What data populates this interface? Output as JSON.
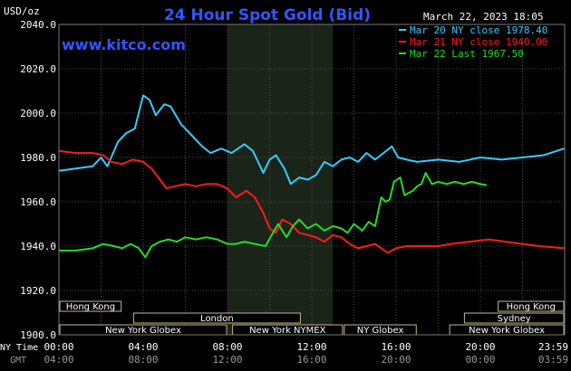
{
  "chart_data": {
    "type": "line",
    "title": "24 Hour Spot Gold (Bid)",
    "ylabel": "USD/oz",
    "timestamp": "March 22, 2023 18:05",
    "watermark": "www.kitco.com",
    "ylim": [
      1900,
      2040
    ],
    "y_ticks": [
      "2040.0",
      "2020.0",
      "2000.0",
      "1980.0",
      "1960.0",
      "1940.0",
      "1920.0",
      "1900.0"
    ],
    "x_axis_label_1": "NY Time",
    "x_axis_label_2": "GMT",
    "x_ticks_ny": [
      "00:00",
      "04:00",
      "08:00",
      "12:00",
      "16:00",
      "20:00",
      "23:59"
    ],
    "x_ticks_gmt": [
      "04:00",
      "08:00",
      "12:00",
      "16:00",
      "20:00",
      "00:00",
      "03:59"
    ],
    "highlight_region_hours": [
      8,
      13
    ],
    "series": [
      {
        "name": "Mar 20 NY close 1978.40",
        "color": "#33ccff",
        "points": [
          [
            0,
            1974
          ],
          [
            0.8,
            1975
          ],
          [
            1.6,
            1976
          ],
          [
            2.0,
            1980
          ],
          [
            2.3,
            1976
          ],
          [
            2.8,
            1987
          ],
          [
            3.2,
            1991
          ],
          [
            3.6,
            1993
          ],
          [
            4.0,
            2008
          ],
          [
            4.3,
            2006
          ],
          [
            4.6,
            1999
          ],
          [
            5.0,
            2004
          ],
          [
            5.3,
            2003
          ],
          [
            5.8,
            1995
          ],
          [
            6.3,
            1990
          ],
          [
            6.8,
            1985
          ],
          [
            7.2,
            1982
          ],
          [
            7.7,
            1984
          ],
          [
            8.2,
            1982
          ],
          [
            8.8,
            1986
          ],
          [
            9.2,
            1983
          ],
          [
            9.5,
            1977
          ],
          [
            9.7,
            1973
          ],
          [
            10.0,
            1979
          ],
          [
            10.3,
            1981
          ],
          [
            10.7,
            1975
          ],
          [
            11.0,
            1968
          ],
          [
            11.4,
            1971
          ],
          [
            11.8,
            1970
          ],
          [
            12.2,
            1972
          ],
          [
            12.6,
            1978
          ],
          [
            13.0,
            1976
          ],
          [
            13.4,
            1979
          ],
          [
            13.8,
            1980
          ],
          [
            14.2,
            1978
          ],
          [
            14.6,
            1982
          ],
          [
            15.0,
            1979
          ],
          [
            15.4,
            1982
          ],
          [
            15.8,
            1985
          ],
          [
            16.1,
            1980
          ],
          [
            16.5,
            1979
          ],
          [
            17.0,
            1978
          ],
          [
            18.0,
            1979
          ],
          [
            19.0,
            1978
          ],
          [
            20.0,
            1980
          ],
          [
            21.0,
            1979
          ],
          [
            22.0,
            1980
          ],
          [
            23.0,
            1981
          ],
          [
            23.98,
            1984
          ]
        ]
      },
      {
        "name": "Mar 21 NY close 1940.00",
        "color": "#ff1a1a",
        "points": [
          [
            0,
            1983
          ],
          [
            0.8,
            1982
          ],
          [
            1.6,
            1982
          ],
          [
            2.1,
            1981
          ],
          [
            2.5,
            1978
          ],
          [
            3.0,
            1977
          ],
          [
            3.5,
            1979
          ],
          [
            4.0,
            1978
          ],
          [
            4.4,
            1975
          ],
          [
            4.8,
            1970
          ],
          [
            5.1,
            1966
          ],
          [
            5.5,
            1967
          ],
          [
            6.0,
            1968
          ],
          [
            6.5,
            1967
          ],
          [
            7.0,
            1968
          ],
          [
            7.5,
            1968
          ],
          [
            8.0,
            1966
          ],
          [
            8.4,
            1962
          ],
          [
            8.9,
            1965
          ],
          [
            9.3,
            1962
          ],
          [
            9.7,
            1955
          ],
          [
            10.0,
            1948
          ],
          [
            10.3,
            1946
          ],
          [
            10.6,
            1952
          ],
          [
            11.0,
            1950
          ],
          [
            11.4,
            1946
          ],
          [
            11.8,
            1945
          ],
          [
            12.2,
            1944
          ],
          [
            12.6,
            1942
          ],
          [
            13.0,
            1945
          ],
          [
            13.4,
            1944
          ],
          [
            13.8,
            1941
          ],
          [
            14.2,
            1939
          ],
          [
            14.6,
            1940
          ],
          [
            15.0,
            1941
          ],
          [
            15.3,
            1939
          ],
          [
            15.6,
            1937
          ],
          [
            16.0,
            1939
          ],
          [
            16.5,
            1940
          ],
          [
            17.0,
            1940
          ],
          [
            18.0,
            1940
          ],
          [
            18.6,
            1941
          ],
          [
            19.5,
            1942
          ],
          [
            20.4,
            1943
          ],
          [
            21.2,
            1942
          ],
          [
            22.0,
            1941
          ],
          [
            22.8,
            1940
          ],
          [
            23.98,
            1939
          ]
        ]
      },
      {
        "name": "Mar 22 Last 1967.50",
        "color": "#22dd22",
        "points": [
          [
            0,
            1938
          ],
          [
            0.8,
            1938
          ],
          [
            1.6,
            1939
          ],
          [
            2.1,
            1941
          ],
          [
            2.6,
            1940
          ],
          [
            3.0,
            1939
          ],
          [
            3.4,
            1941
          ],
          [
            3.8,
            1939
          ],
          [
            4.1,
            1935
          ],
          [
            4.4,
            1940
          ],
          [
            4.8,
            1942
          ],
          [
            5.2,
            1943
          ],
          [
            5.6,
            1942
          ],
          [
            6.0,
            1944
          ],
          [
            6.5,
            1943
          ],
          [
            7.0,
            1944
          ],
          [
            7.5,
            1943
          ],
          [
            8.0,
            1941
          ],
          [
            8.4,
            1941
          ],
          [
            8.8,
            1942
          ],
          [
            9.3,
            1941
          ],
          [
            9.8,
            1940
          ],
          [
            10.1,
            1945
          ],
          [
            10.4,
            1950
          ],
          [
            10.8,
            1944
          ],
          [
            11.1,
            1949
          ],
          [
            11.4,
            1952
          ],
          [
            11.8,
            1948
          ],
          [
            12.2,
            1950
          ],
          [
            12.6,
            1947
          ],
          [
            13.0,
            1949
          ],
          [
            13.4,
            1948
          ],
          [
            13.7,
            1946
          ],
          [
            14.0,
            1950
          ],
          [
            14.4,
            1947
          ],
          [
            14.7,
            1951
          ],
          [
            15.0,
            1949
          ],
          [
            15.3,
            1962
          ],
          [
            15.5,
            1960
          ],
          [
            15.7,
            1961
          ],
          [
            15.9,
            1969
          ],
          [
            16.2,
            1971
          ],
          [
            16.4,
            1963
          ],
          [
            16.8,
            1965
          ],
          [
            17.0,
            1967
          ],
          [
            17.2,
            1968
          ],
          [
            17.4,
            1973
          ],
          [
            17.7,
            1968
          ],
          [
            18.0,
            1969
          ],
          [
            18.4,
            1968
          ],
          [
            18.8,
            1969
          ],
          [
            19.2,
            1968
          ],
          [
            19.6,
            1969
          ],
          [
            20.0,
            1968
          ],
          [
            20.3,
            1967.5
          ]
        ]
      }
    ],
    "sessions": [
      {
        "label": "Hong Kong",
        "start": 0,
        "end": 3,
        "row": 0
      },
      {
        "label": "Hong Kong",
        "start": 20.8,
        "end": 24,
        "row": 0
      },
      {
        "label": "London",
        "start": 3.5,
        "end": 11.5,
        "row": 1
      },
      {
        "label": "Sydney",
        "start": 19.2,
        "end": 24,
        "row": 1
      },
      {
        "label": "New York Globex",
        "start": 0,
        "end": 8,
        "row": 2
      },
      {
        "label": "New York NYMEX",
        "start": 8.2,
        "end": 13.5,
        "row": 2
      },
      {
        "label": "NY Globex",
        "start": 13.5,
        "end": 17,
        "row": 2
      },
      {
        "label": "New York Globex",
        "start": 18.5,
        "end": 24,
        "row": 2
      }
    ]
  }
}
